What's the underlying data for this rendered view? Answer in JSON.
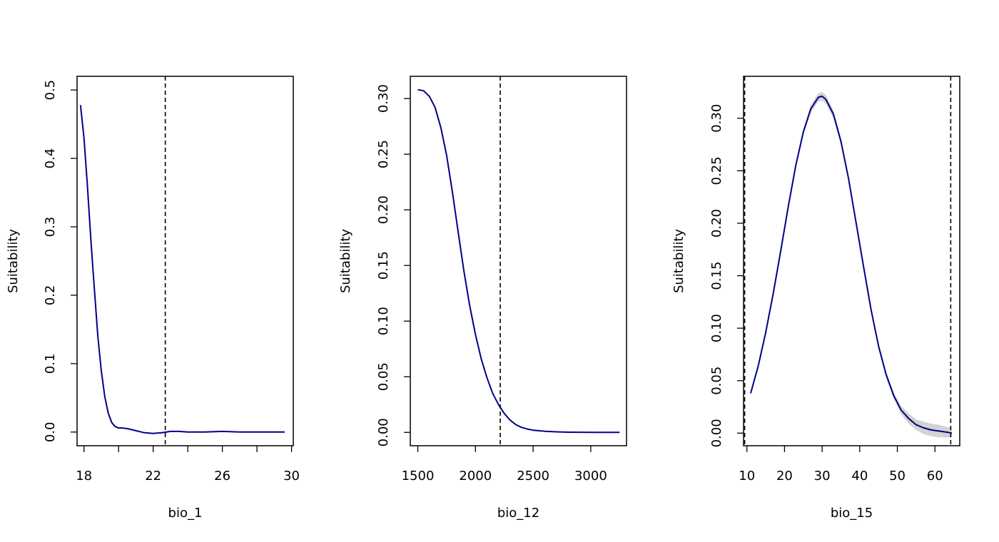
{
  "chart_data": [
    {
      "type": "line",
      "xlabel": "bio_1",
      "ylabel": "Suitability",
      "xlim": [
        17.6,
        30.1
      ],
      "ylim": [
        -0.02,
        0.52
      ],
      "xticks": [
        18,
        20,
        22,
        24,
        26,
        28,
        30
      ],
      "xtick_labels": [
        "18",
        "",
        "22",
        "",
        "26",
        "",
        "30"
      ],
      "yticks": [
        0,
        0.1,
        0.2,
        0.3,
        0.4,
        0.5
      ],
      "ytick_labels": [
        "0.0",
        "0.1",
        "0.2",
        "0.3",
        "0.4",
        "0.5"
      ],
      "vlines": [
        22.7
      ],
      "line_color": "#00008b",
      "series": [
        {
          "x": [
            17.8,
            18.0,
            18.2,
            18.4,
            18.6,
            18.8,
            19.0,
            19.2,
            19.4,
            19.6,
            19.8,
            20.0,
            20.2,
            20.5,
            21.0,
            21.5,
            22.0,
            22.5,
            23.0,
            23.5,
            24.0,
            24.5,
            25.0,
            26.0,
            27.0,
            28.0,
            29.0,
            29.6
          ],
          "y": [
            0.478,
            0.43,
            0.36,
            0.28,
            0.21,
            0.14,
            0.09,
            0.052,
            0.028,
            0.014,
            0.008,
            0.006,
            0.006,
            0.005,
            0.002,
            -0.001,
            -0.002,
            -0.001,
            0.001,
            0.001,
            0.0,
            0.0,
            0.0,
            0.001,
            0.0,
            0.0,
            0.0,
            0.0
          ]
        }
      ]
    },
    {
      "type": "line",
      "xlabel": "bio_12",
      "ylabel": "Suitability",
      "xlim": [
        1435,
        3310
      ],
      "ylim": [
        -0.012,
        0.32
      ],
      "xticks": [
        1500,
        2000,
        2500,
        3000
      ],
      "xtick_labels": [
        "1500",
        "2000",
        "2500",
        "3000"
      ],
      "yticks": [
        0,
        0.05,
        0.1,
        0.15,
        0.2,
        0.25,
        0.3
      ],
      "ytick_labels": [
        "0.00",
        "0.05",
        "0.10",
        "0.15",
        "0.20",
        "0.25",
        "0.30"
      ],
      "vlines": [
        2215
      ],
      "line_color": "#00008b",
      "series": [
        {
          "x": [
            1500,
            1550,
            1600,
            1650,
            1700,
            1750,
            1800,
            1850,
            1900,
            1950,
            2000,
            2050,
            2100,
            2150,
            2200,
            2250,
            2300,
            2350,
            2400,
            2450,
            2500,
            2600,
            2700,
            2800,
            3000,
            3250
          ],
          "y": [
            0.308,
            0.307,
            0.302,
            0.292,
            0.274,
            0.249,
            0.216,
            0.18,
            0.145,
            0.114,
            0.088,
            0.066,
            0.049,
            0.035,
            0.025,
            0.017,
            0.011,
            0.007,
            0.0045,
            0.003,
            0.002,
            0.001,
            0.0005,
            0.0002,
            0.0,
            0.0
          ]
        }
      ]
    },
    {
      "type": "line",
      "xlabel": "bio_15",
      "ylabel": "Suitability",
      "xlim": [
        9.1,
        66.6
      ],
      "ylim": [
        -0.012,
        0.34
      ],
      "xticks": [
        10,
        20,
        30,
        40,
        50,
        60
      ],
      "xtick_labels": [
        "10",
        "20",
        "30",
        "40",
        "50",
        "60"
      ],
      "yticks": [
        0,
        0.05,
        0.1,
        0.15,
        0.2,
        0.25,
        0.3
      ],
      "ytick_labels": [
        "0.00",
        "0.05",
        "0.10",
        "0.15",
        "0.20",
        "0.25",
        "0.30"
      ],
      "vlines": [
        9.4,
        64.2
      ],
      "line_color": "#00008b",
      "band_color": "#d3d3d3",
      "series": [
        {
          "x": [
            11,
            13,
            15,
            17,
            19,
            21,
            23,
            25,
            27,
            29,
            30,
            31,
            33,
            35,
            37,
            39,
            41,
            43,
            45,
            47,
            49,
            51,
            53,
            55,
            57,
            59,
            61,
            63,
            64.5
          ],
          "y": [
            0.038,
            0.064,
            0.096,
            0.133,
            0.174,
            0.216,
            0.255,
            0.287,
            0.309,
            0.32,
            0.321,
            0.318,
            0.304,
            0.278,
            0.243,
            0.201,
            0.159,
            0.118,
            0.083,
            0.056,
            0.036,
            0.022,
            0.014,
            0.008,
            0.005,
            0.003,
            0.002,
            0.001,
            0.0
          ],
          "lower": [
            0.036,
            0.062,
            0.094,
            0.131,
            0.172,
            0.214,
            0.253,
            0.284,
            0.305,
            0.316,
            0.317,
            0.314,
            0.3,
            0.275,
            0.24,
            0.198,
            0.156,
            0.115,
            0.08,
            0.053,
            0.033,
            0.018,
            0.009,
            0.003,
            -0.001,
            -0.003,
            -0.004,
            -0.004,
            -0.004
          ],
          "upper": [
            0.04,
            0.066,
            0.098,
            0.135,
            0.176,
            0.218,
            0.257,
            0.29,
            0.313,
            0.324,
            0.325,
            0.322,
            0.308,
            0.281,
            0.246,
            0.204,
            0.162,
            0.121,
            0.086,
            0.059,
            0.039,
            0.026,
            0.019,
            0.013,
            0.011,
            0.009,
            0.008,
            0.006,
            0.005
          ]
        }
      ]
    }
  ]
}
